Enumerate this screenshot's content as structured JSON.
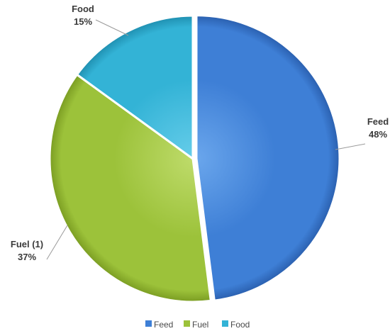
{
  "chart_data": {
    "type": "pie",
    "title": "",
    "slices": [
      {
        "label": "Feed",
        "value": 48,
        "value_label": "48%",
        "color": "#3e7fd6",
        "color_light": "#6aa6ec",
        "color_dark": "#2a5fae"
      },
      {
        "label": "Fuel (1)",
        "value": 37,
        "value_label": "37%",
        "color": "#9cc23a",
        "color_light": "#bedb6a",
        "color_dark": "#7a9c22"
      },
      {
        "label": "Food",
        "value": 15,
        "value_label": "15%",
        "color": "#33b3d6",
        "color_light": "#66cdea",
        "color_dark": "#1f8fb0"
      }
    ],
    "start_angle_deg": 0,
    "direction": "clockwise",
    "legend": {
      "placement": "bottom",
      "items": [
        {
          "label": "Feed",
          "color": "#3e7fd6"
        },
        {
          "label": "Fuel",
          "color": "#9cc23a"
        },
        {
          "label": "Food",
          "color": "#33b3d6"
        }
      ]
    }
  }
}
